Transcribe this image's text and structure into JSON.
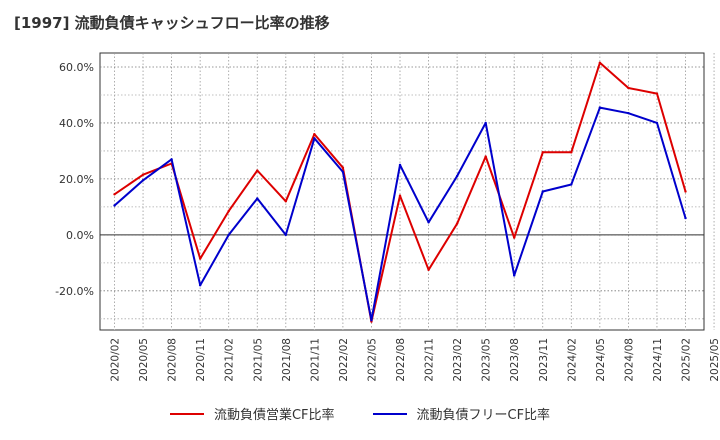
{
  "title": "[1997]  流動負債キャッシュフロー比率の推移",
  "chart_data": {
    "type": "line",
    "x": [
      "2020/02",
      "2020/05",
      "2020/08",
      "2020/11",
      "2021/02",
      "2021/05",
      "2021/08",
      "2021/11",
      "2022/02",
      "2022/05",
      "2022/08",
      "2022/11",
      "2023/02",
      "2023/05",
      "2023/08",
      "2023/11",
      "2024/02",
      "2024/05",
      "2024/08",
      "2024/11",
      "2025/02",
      "2025/05"
    ],
    "series": [
      {
        "name": "流動負債営業CF比率",
        "color": "#dd0000",
        "values": [
          14.5,
          21.5,
          25.5,
          -8.5,
          8.5,
          23.0,
          12.0,
          36.0,
          24.0,
          -31.0,
          14.0,
          -12.5,
          4.0,
          28.0,
          -1.0,
          29.5,
          29.5,
          61.5,
          52.5,
          50.5,
          15.5,
          null
        ]
      },
      {
        "name": "流動負債フリーCF比率",
        "color": "#0000cc",
        "values": [
          10.5,
          19.5,
          27.0,
          -18.0,
          0.0,
          13.0,
          0.0,
          34.5,
          22.5,
          -30.5,
          25.0,
          4.5,
          21.0,
          40.0,
          -14.5,
          15.5,
          18.0,
          45.5,
          43.5,
          40.0,
          6.0,
          null
        ]
      }
    ],
    "yticks": [
      -20,
      0,
      20,
      40,
      60
    ],
    "ytick_labels": [
      "-20.0%",
      "0.0%",
      "20.0%",
      "40.0%",
      "60.0%"
    ],
    "ylim": [
      -34,
      65
    ],
    "grid": true,
    "legend_position": "bottom"
  }
}
